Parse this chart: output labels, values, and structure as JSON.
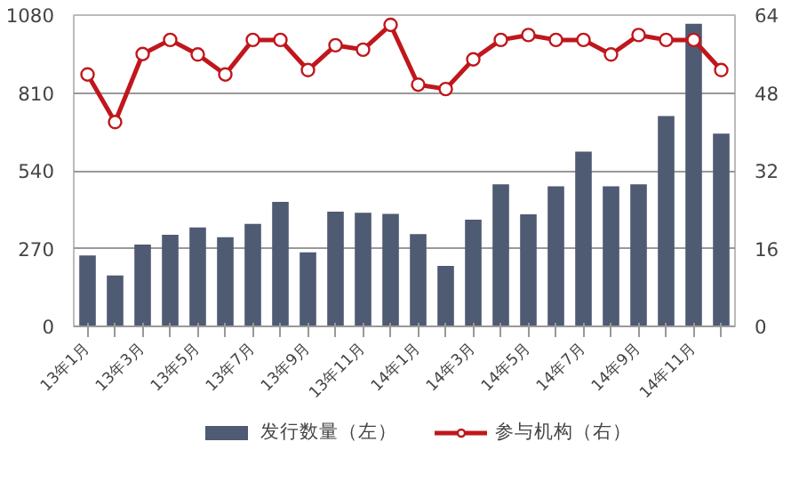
{
  "chart_data": {
    "type": "bar",
    "categories": [
      "13年1月",
      null,
      "13年3月",
      null,
      "13年5月",
      null,
      "13年7月",
      null,
      "13年9月",
      null,
      "13年11月",
      null,
      "14年1月",
      null,
      "14年3月",
      null,
      "14年5月",
      null,
      "14年7月",
      null,
      "14年9月",
      null,
      "14年11月",
      null
    ],
    "series": [
      {
        "name": "发行数量（左）",
        "type": "bar",
        "color": "#4f5a73",
        "values": [
          246,
          177,
          284,
          318,
          343,
          309,
          356,
          432,
          257,
          398,
          394,
          390,
          320,
          210,
          370,
          493,
          389,
          486,
          606,
          486,
          493,
          730,
          1050,
          669
        ]
      },
      {
        "name": "参与机构（右）",
        "type": "line",
        "axis": "y2",
        "color": "#c0171c",
        "marker": "circle",
        "values": [
          51.8,
          42.0,
          56.0,
          58.9,
          55.9,
          51.8,
          58.9,
          58.9,
          52.7,
          57.8,
          56.9,
          62.0,
          49.7,
          48.8,
          54.9,
          58.9,
          59.9,
          58.9,
          58.9,
          55.9,
          59.9,
          58.9,
          58.9,
          52.7
        ]
      }
    ],
    "ylim": [
      0,
      1080
    ],
    "yticks": [
      0,
      270,
      540,
      810,
      1080
    ],
    "y2lim": [
      0,
      64
    ],
    "y2ticks": [
      0,
      16,
      32,
      48,
      64
    ],
    "grid": "y",
    "legend": "bottom"
  }
}
